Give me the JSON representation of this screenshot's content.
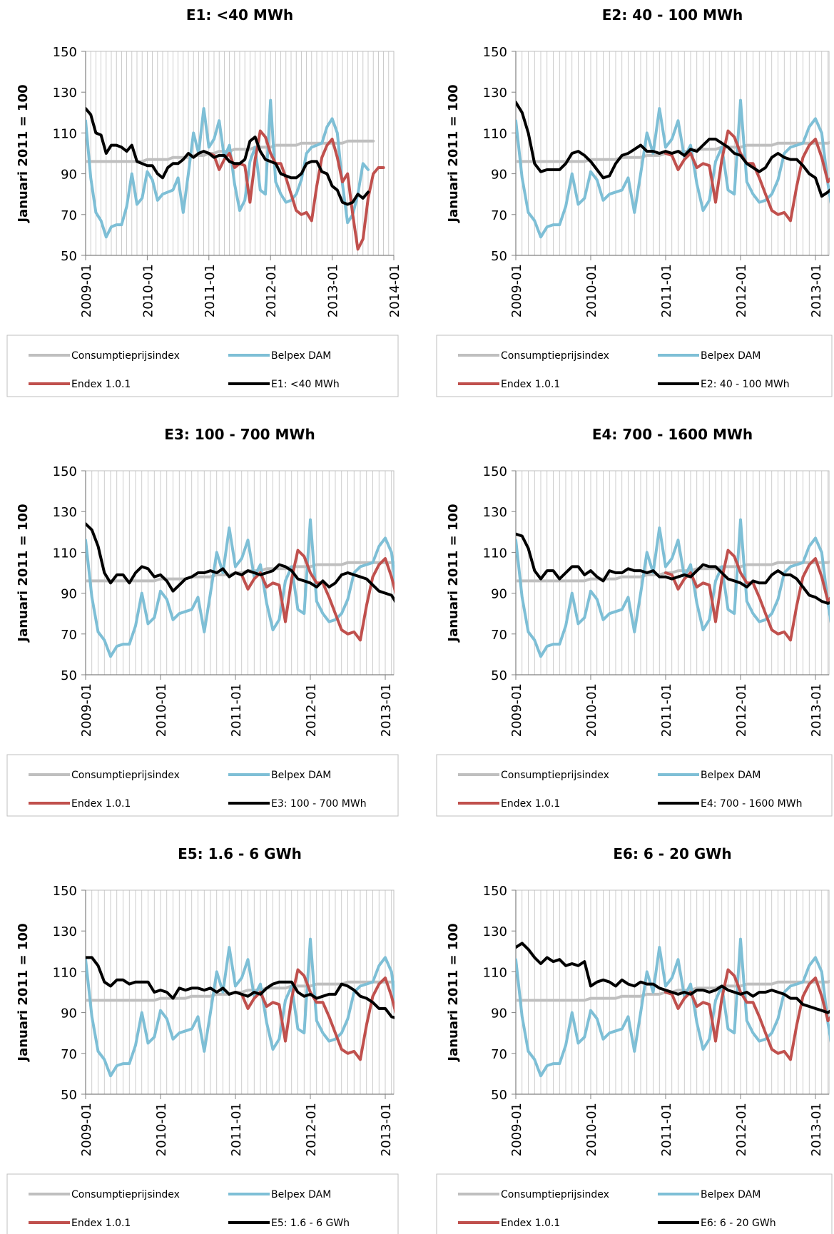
{
  "colors": {
    "cpi": "#bfbfbf",
    "belpex": "#7ebfd6",
    "endex": "#c0504d",
    "segment": "#000000",
    "grid": "#bfbfbf"
  },
  "legend": {
    "cpi": "Consumptieprijsindex",
    "belpex": "Belpex DAM",
    "endex": "Endex 1.0.1"
  },
  "chart_data": [
    {
      "type": "line",
      "title": "E1: <40 MWh",
      "ylabel": "Januari  2011 = 100",
      "ylim": [
        50,
        150
      ],
      "yticks": [
        "50",
        "70",
        "90",
        "110",
        "130",
        "150"
      ],
      "xticks": [
        "2009-01",
        "2010-01",
        "2011-01",
        "2012-01",
        "2013-01",
        "2014-01"
      ],
      "series_name": "E1: <40 MWh",
      "segment": [
        122,
        119,
        110,
        109,
        100,
        104,
        104,
        103,
        101,
        104,
        96,
        95,
        94,
        94,
        90,
        88,
        93,
        95,
        95,
        97,
        100,
        98,
        100,
        101,
        100,
        98,
        99,
        99,
        96,
        95,
        95,
        97,
        106,
        108,
        101,
        97,
        96,
        95,
        90,
        89,
        88,
        88,
        90,
        95,
        96,
        96,
        91,
        90,
        84,
        82,
        76,
        75,
        76,
        80,
        78,
        81
      ]
    },
    {
      "type": "line",
      "title": "E2: 40 - 100 MWh",
      "ylabel": "Januari  2011 = 100",
      "ylim": [
        50,
        150
      ],
      "yticks": [
        "50",
        "70",
        "90",
        "110",
        "130",
        "150"
      ],
      "xticks": [
        "2009-01",
        "2010-01",
        "2011-01",
        "2012-01",
        "2013-01"
      ],
      "series_name": "E2: 40 - 100 MWh",
      "segment": [
        125,
        120,
        110,
        95,
        91,
        92,
        92,
        92,
        95,
        100,
        101,
        99,
        96,
        92,
        88,
        89,
        95,
        99,
        100,
        102,
        104,
        101,
        101,
        100,
        101,
        100,
        101,
        99,
        102,
        101,
        104,
        107,
        107,
        105,
        103,
        100,
        99,
        95,
        93,
        91,
        93,
        98,
        100,
        98,
        97,
        97,
        94,
        90,
        88,
        79,
        81,
        84,
        87,
        86,
        85
      ]
    },
    {
      "type": "line",
      "title": "E3: 100 - 700 MWh",
      "ylabel": "Januari  2011 = 100",
      "ylim": [
        50,
        150
      ],
      "yticks": [
        "50",
        "70",
        "90",
        "110",
        "130",
        "150"
      ],
      "xticks": [
        "2009-01",
        "2010-01",
        "2011-01",
        "2012-01",
        "2013-01"
      ],
      "series_name": "E3: 100 - 700 MWh",
      "segment": [
        124,
        121,
        113,
        100,
        95,
        99,
        99,
        95,
        100,
        103,
        102,
        98,
        99,
        96,
        91,
        94,
        97,
        98,
        100,
        100,
        101,
        100,
        102,
        98,
        100,
        99,
        101,
        100,
        99,
        100,
        101,
        104,
        103,
        101,
        97,
        96,
        95,
        93,
        96,
        93,
        95,
        99,
        100,
        99,
        98,
        97,
        94,
        91,
        90,
        89,
        84,
        85,
        87,
        88,
        87
      ]
    },
    {
      "type": "line",
      "title": "E4: 700 - 1600 MWh",
      "ylabel": "Januari  2011 = 100",
      "ylim": [
        50,
        150
      ],
      "yticks": [
        "50",
        "70",
        "90",
        "110",
        "130",
        "150"
      ],
      "xticks": [
        "2009-01",
        "2010-01",
        "2011-01",
        "2012-01",
        "2013-01"
      ],
      "series_name": "E4: 700 - 1600 MWh",
      "segment": [
        119,
        118,
        112,
        101,
        97,
        101,
        101,
        97,
        100,
        103,
        103,
        99,
        101,
        98,
        96,
        101,
        100,
        100,
        102,
        101,
        101,
        100,
        101,
        98,
        98,
        97,
        98,
        99,
        98,
        101,
        104,
        103,
        103,
        100,
        97,
        96,
        95,
        93,
        96,
        95,
        95,
        99,
        101,
        99,
        99,
        97,
        93,
        89,
        88,
        86,
        85,
        86,
        89,
        88,
        88
      ]
    },
    {
      "type": "line",
      "title": "E5: 1.6 - 6 GWh",
      "ylabel": "Januari  2011 = 100",
      "ylim": [
        50,
        150
      ],
      "yticks": [
        "50",
        "70",
        "90",
        "110",
        "130",
        "150"
      ],
      "xticks": [
        "2009-01",
        "2010-01",
        "2011-01",
        "2012-01",
        "2013-01"
      ],
      "series_name": "E5: 1.6 - 6 GWh",
      "segment": [
        117,
        117,
        113,
        105,
        103,
        106,
        106,
        104,
        105,
        105,
        105,
        100,
        101,
        100,
        97,
        102,
        101,
        102,
        102,
        101,
        102,
        100,
        102,
        99,
        100,
        99,
        98,
        100,
        99,
        102,
        104,
        105,
        105,
        105,
        100,
        98,
        99,
        97,
        98,
        99,
        99,
        104,
        103,
        101,
        98,
        97,
        95,
        92,
        92,
        88,
        87,
        87,
        92,
        91,
        91
      ]
    },
    {
      "type": "line",
      "title": "E6: 6 - 20 GWh",
      "ylabel": "Januari  2011 = 100",
      "ylim": [
        50,
        150
      ],
      "yticks": [
        "50",
        "70",
        "90",
        "110",
        "130",
        "150"
      ],
      "xticks": [
        "2009-01",
        "2010-01",
        "2011-01",
        "2012-01",
        "2013-01"
      ],
      "series_name": "E6: 6 - 20 GWh",
      "segment": [
        122,
        124,
        121,
        117,
        114,
        117,
        115,
        116,
        113,
        114,
        113,
        115,
        103,
        105,
        106,
        105,
        103,
        106,
        104,
        103,
        105,
        104,
        104,
        102,
        101,
        100,
        99,
        100,
        99,
        101,
        101,
        100,
        101,
        103,
        101,
        100,
        99,
        100,
        98,
        100,
        100,
        101,
        100,
        99,
        97,
        97,
        94,
        93,
        92,
        91,
        90,
        92,
        93,
        93,
        93
      ]
    }
  ],
  "shared_series": {
    "cpi": [
      96,
      96,
      96,
      96,
      96,
      96,
      96,
      96,
      96,
      96,
      96,
      96,
      97,
      97,
      97,
      97,
      97,
      98,
      98,
      98,
      98,
      99,
      99,
      99,
      100,
      100,
      101,
      101,
      101,
      102,
      102,
      102,
      102,
      103,
      103,
      103,
      103,
      104,
      104,
      104,
      104,
      104,
      105,
      105,
      105,
      105,
      105,
      105,
      105,
      105,
      105,
      106,
      106,
      106,
      106,
      106,
      106
    ],
    "belpex": [
      116,
      88,
      71,
      67,
      59,
      64,
      65,
      65,
      74,
      90,
      75,
      78,
      91,
      87,
      77,
      80,
      81,
      82,
      88,
      71,
      90,
      110,
      100,
      122,
      103,
      107,
      116,
      98,
      104,
      85,
      72,
      77,
      96,
      103,
      82,
      80,
      126,
      86,
      80,
      76,
      77,
      80,
      87,
      100,
      103,
      104,
      105,
      113,
      117,
      110,
      85,
      66,
      70,
      80,
      95,
      92
    ],
    "endex": [
      null,
      null,
      null,
      null,
      null,
      null,
      null,
      null,
      null,
      null,
      null,
      null,
      null,
      null,
      null,
      null,
      null,
      null,
      null,
      null,
      null,
      null,
      null,
      null,
      100,
      99,
      92,
      97,
      100,
      93,
      95,
      94,
      76,
      97,
      111,
      108,
      100,
      95,
      95,
      88,
      80,
      72,
      70,
      71,
      67,
      84,
      98,
      104,
      107,
      98,
      86,
      90,
      70,
      53,
      58,
      78,
      90,
      93,
      93
    ]
  }
}
